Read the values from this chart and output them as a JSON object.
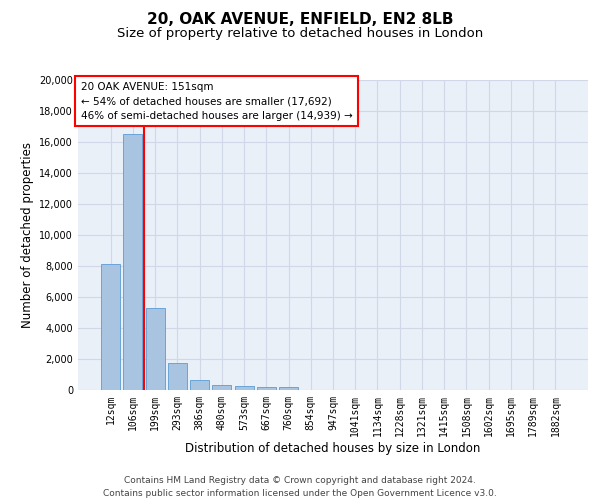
{
  "title1": "20, OAK AVENUE, ENFIELD, EN2 8LB",
  "title2": "Size of property relative to detached houses in London",
  "xlabel": "Distribution of detached houses by size in London",
  "ylabel": "Number of detached properties",
  "categories": [
    "12sqm",
    "106sqm",
    "199sqm",
    "293sqm",
    "386sqm",
    "480sqm",
    "573sqm",
    "667sqm",
    "760sqm",
    "854sqm",
    "947sqm",
    "1041sqm",
    "1134sqm",
    "1228sqm",
    "1321sqm",
    "1415sqm",
    "1508sqm",
    "1602sqm",
    "1695sqm",
    "1789sqm",
    "1882sqm"
  ],
  "values": [
    8100,
    16500,
    5300,
    1750,
    650,
    350,
    270,
    200,
    170,
    0,
    0,
    0,
    0,
    0,
    0,
    0,
    0,
    0,
    0,
    0,
    0
  ],
  "bar_color": "#a8c4e0",
  "bar_edge_color": "#5b9bd5",
  "grid_color": "#d0d8e8",
  "bg_color": "#eaf0f8",
  "annotation_text": "20 OAK AVENUE: 151sqm\n← 54% of detached houses are smaller (17,692)\n46% of semi-detached houses are larger (14,939) →",
  "annotation_box_color": "white",
  "annotation_box_edge": "red",
  "vline_color": "red",
  "ylim": [
    0,
    20000
  ],
  "yticks": [
    0,
    2000,
    4000,
    6000,
    8000,
    10000,
    12000,
    14000,
    16000,
    18000,
    20000
  ],
  "footnote": "Contains HM Land Registry data © Crown copyright and database right 2024.\nContains public sector information licensed under the Open Government Licence v3.0.",
  "title_fontsize": 11,
  "subtitle_fontsize": 9.5,
  "axis_label_fontsize": 8.5,
  "tick_fontsize": 7,
  "annot_fontsize": 7.5,
  "footnote_fontsize": 6.5
}
